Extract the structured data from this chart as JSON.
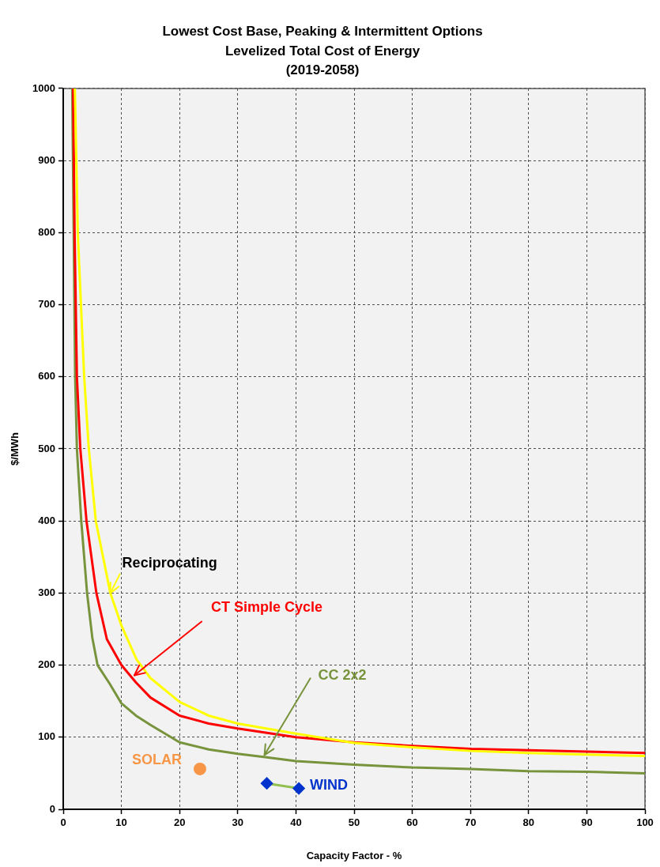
{
  "chart_data": {
    "type": "line",
    "title": "Lowest Cost Base, Peaking & Intermittent Options\nLevelized Total Cost of Energy\n(2019-2058)",
    "xlabel": "Capacity Factor - %",
    "ylabel": "$/MWh",
    "xlim": [
      0,
      100
    ],
    "xticks": [
      0,
      10,
      20,
      30,
      40,
      50,
      60,
      70,
      80,
      90,
      100
    ],
    "ylim": [
      0,
      1000
    ],
    "yticks": [
      0,
      100,
      200,
      300,
      400,
      500,
      600,
      700,
      800,
      900,
      1000
    ],
    "grid": true,
    "legend": false,
    "series": [
      {
        "name": "Reciprocating",
        "color": "#ffff00",
        "marker": "none",
        "x": [
          2.0,
          2.5,
          3.6,
          4.4,
          5.6,
          8.1,
          10,
          12.6,
          15,
          20,
          25,
          30,
          40,
          50,
          60,
          70,
          80,
          90,
          100
        ],
        "values": [
          1000,
          800,
          600,
          500,
          400,
          300,
          255,
          208,
          182,
          149,
          130,
          119,
          105,
          92,
          86,
          81,
          78,
          76,
          74
        ]
      },
      {
        "name": "CT Simple Cycle",
        "color": "#ff0000",
        "marker": "none",
        "x": [
          1.7,
          1.95,
          2.35,
          2.94,
          4.0,
          5.7,
          7.5,
          10,
          12.5,
          15,
          20,
          25,
          30,
          40,
          50,
          60,
          70,
          80,
          90,
          100
        ],
        "values": [
          1000,
          800,
          600,
          500,
          400,
          300,
          236,
          200,
          176,
          155,
          130,
          119,
          112,
          100,
          93,
          88,
          84,
          82,
          80,
          78
        ]
      },
      {
        "name": "CC 2x2",
        "color": "#77933c",
        "marker": "none",
        "x": [
          1.55,
          1.8,
          2.05,
          2.35,
          3.1,
          4.1,
          5,
          5.9,
          8,
          10,
          12.5,
          15,
          20,
          25,
          30,
          35,
          40,
          50,
          60,
          70,
          80,
          90,
          100
        ],
        "values": [
          1000,
          800,
          600,
          500,
          400,
          300,
          238,
          200,
          174,
          147,
          130,
          117,
          93,
          83,
          77,
          72,
          67,
          62,
          58,
          56,
          53,
          52,
          50
        ]
      },
      {
        "name": "SOLAR",
        "type": "scatter",
        "color": "#f79646",
        "marker": "circle",
        "x": [
          23.5
        ],
        "values": [
          56
        ]
      },
      {
        "name": "WIND",
        "color": "#92c050",
        "colors": [
          "#0033cc",
          "#0033cc"
        ],
        "marker": "diamond",
        "x": [
          35,
          40.5
        ],
        "values": [
          36,
          29
        ]
      }
    ]
  }
}
